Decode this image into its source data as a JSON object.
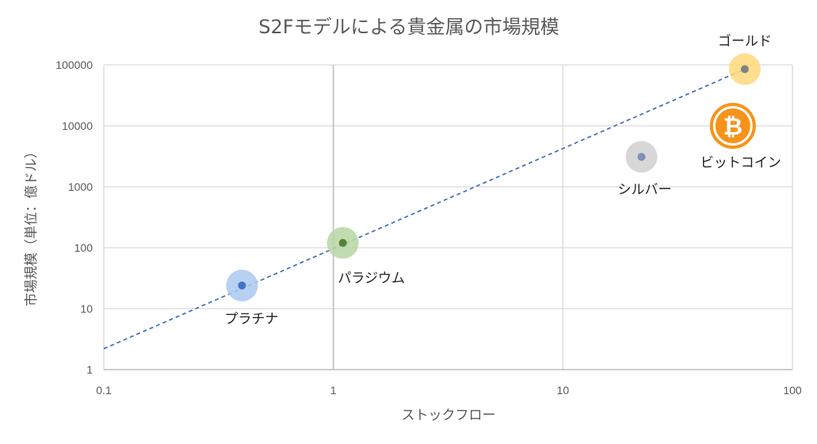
{
  "chart_data": {
    "type": "scatter",
    "title": "S2Fモデルによる貴金属の市場規模",
    "xlabel": "ストックフロー",
    "ylabel": "市場規模（単位：億ドル）",
    "xscale": "log",
    "yscale": "log",
    "xlim": [
      0.1,
      100
    ],
    "ylim": [
      1,
      100000
    ],
    "x_ticks": [
      "0.1",
      "1",
      "10",
      "100"
    ],
    "y_ticks": [
      "1",
      "10",
      "100",
      "1000",
      "10000",
      "100000"
    ],
    "grid": true,
    "points": [
      {
        "label": "プラチナ",
        "x": 0.4,
        "y": 24,
        "color": "#a9c9ee",
        "dot": "#4472c4"
      },
      {
        "label": "パラジウム",
        "x": 1.1,
        "y": 120,
        "color": "#b7d6a3",
        "dot": "#548235"
      },
      {
        "label": "シルバー",
        "x": 22,
        "y": 3100,
        "color": "#d0d0d0",
        "dot": "#7f8fb5"
      },
      {
        "label": "ゴールド",
        "x": 62,
        "y": 85000,
        "color": "#ffd97a",
        "dot": "#808080"
      },
      {
        "label": "ビットコイン",
        "x": 55,
        "y": 10000,
        "color": "#f7931a",
        "dot": "#ffffff",
        "icon": "bitcoin-icon"
      }
    ],
    "trendline": {
      "style": "dashed",
      "color": "#4472c4",
      "from": {
        "x": 0.1,
        "y": 2.2
      },
      "to": {
        "x": 62,
        "y": 85000
      }
    }
  }
}
